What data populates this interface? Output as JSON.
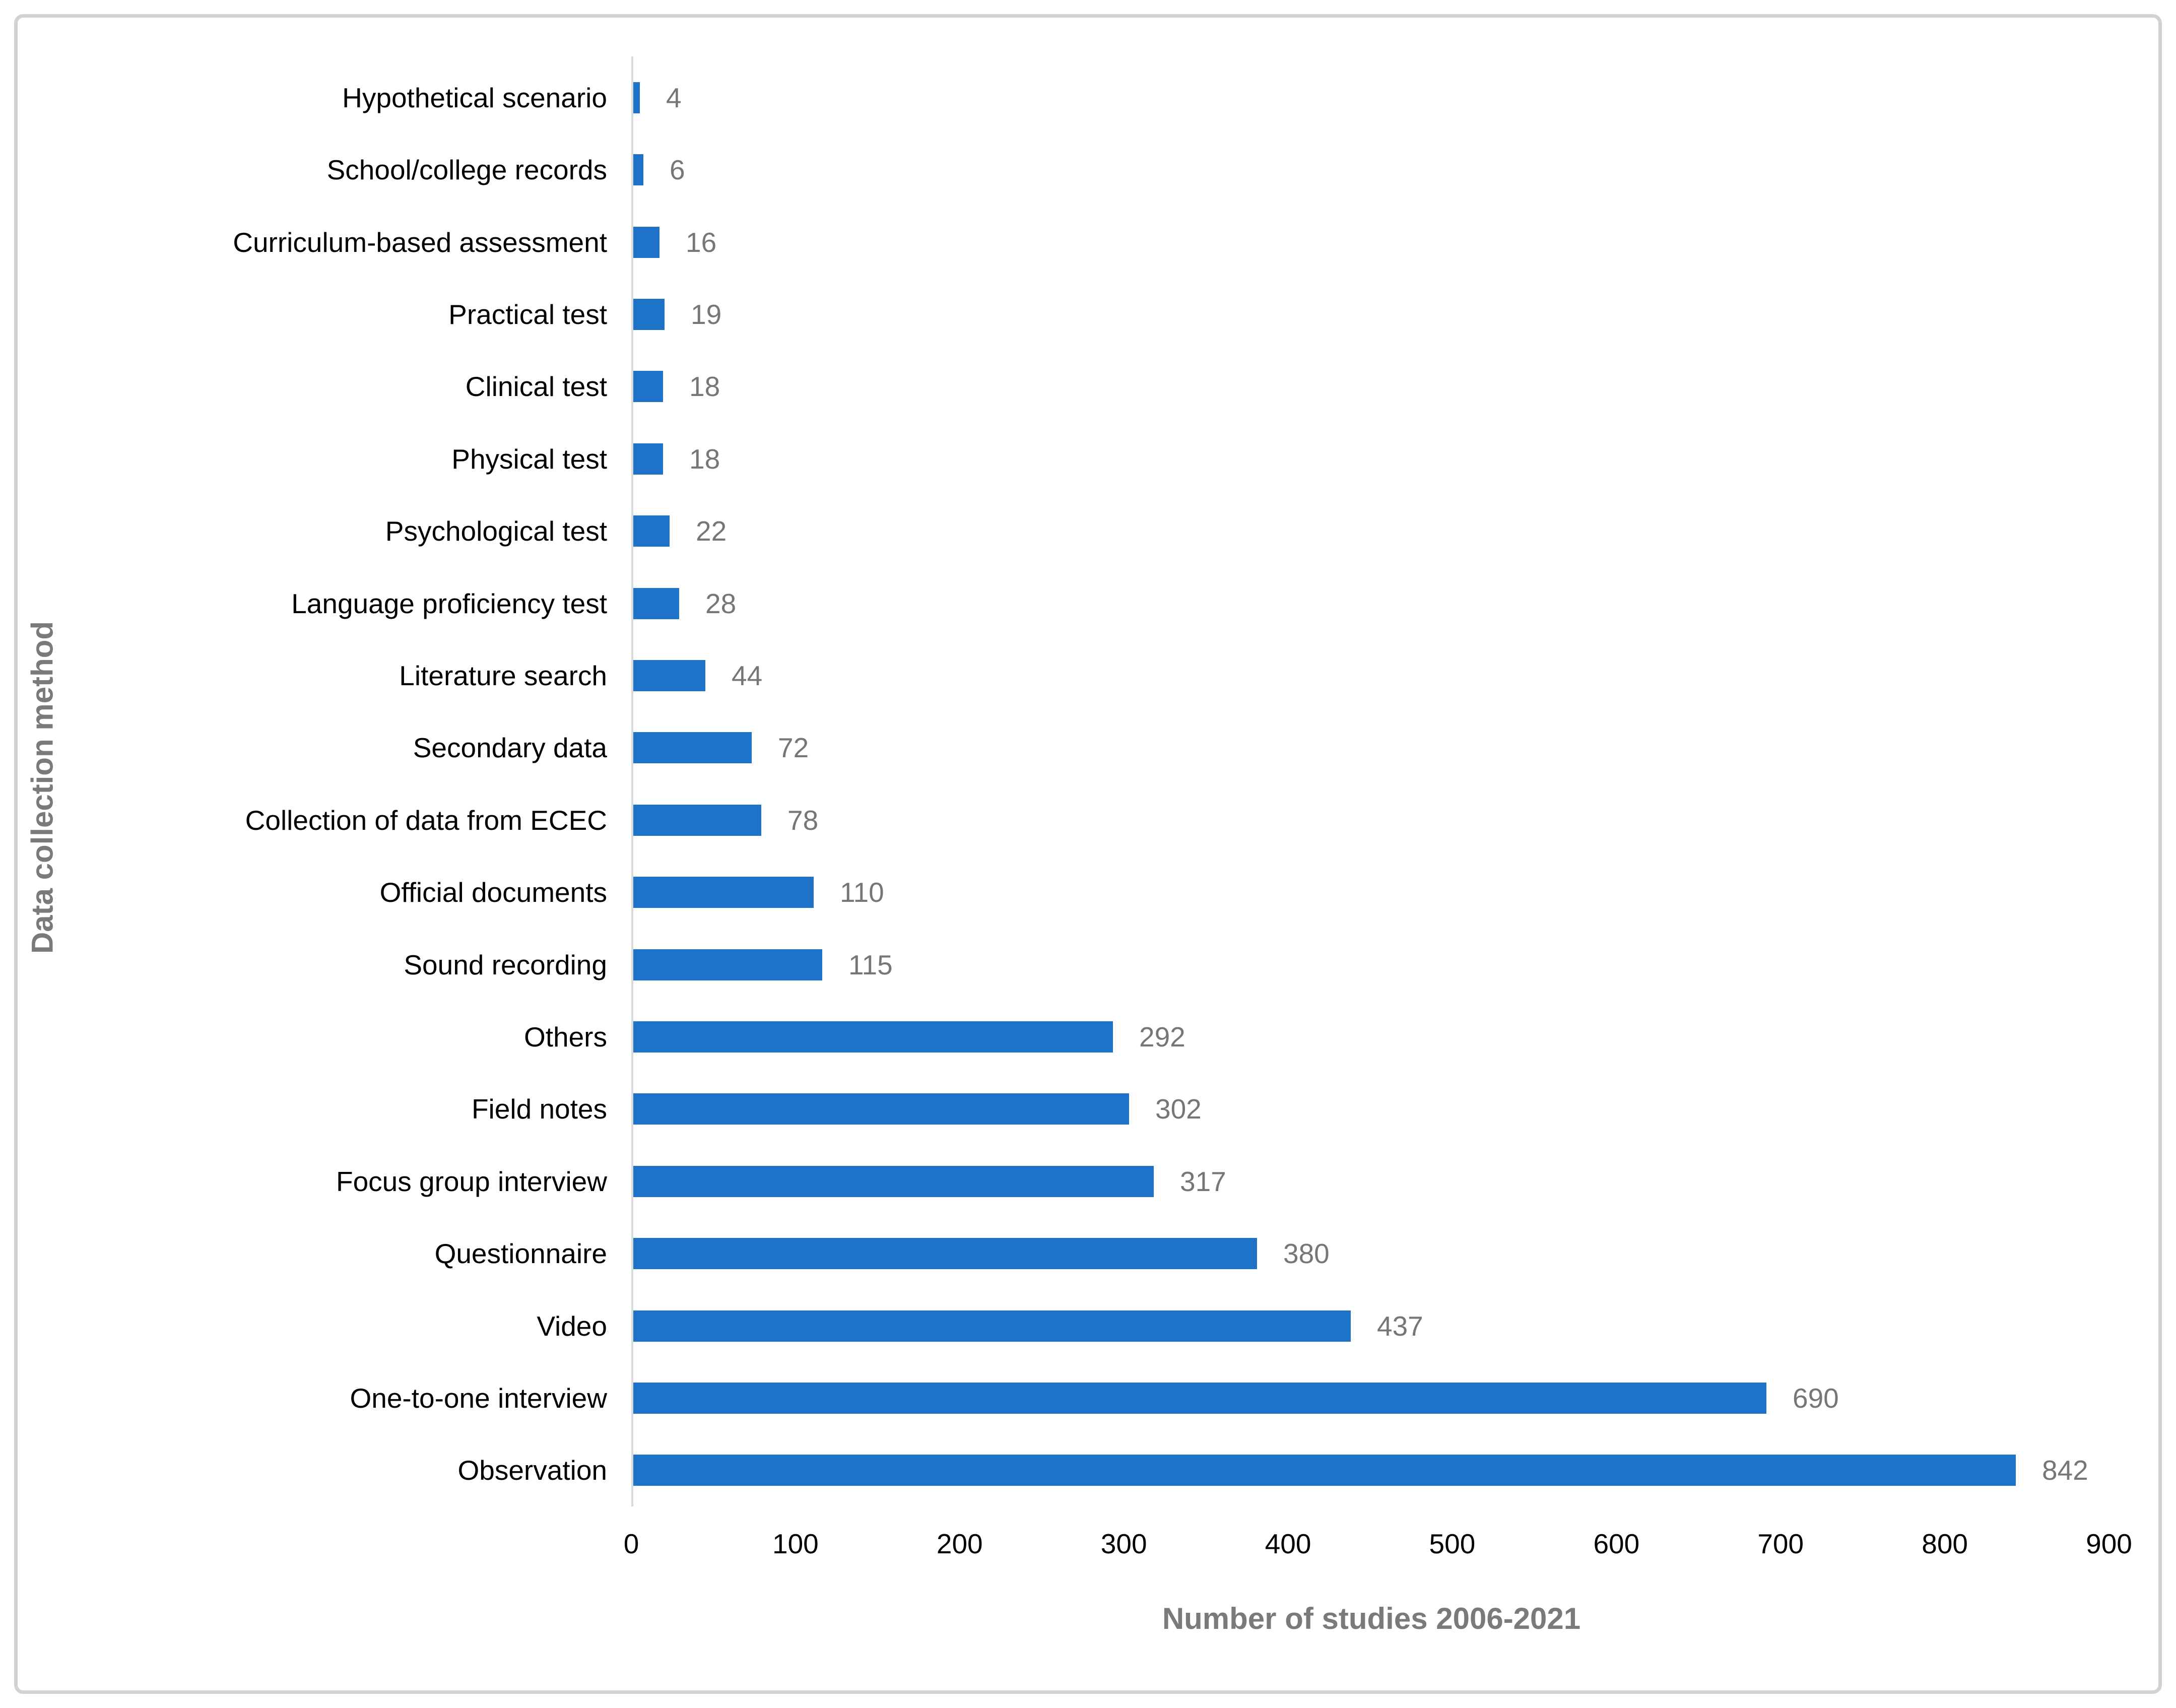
{
  "chart_data": {
    "type": "bar",
    "orientation": "horizontal",
    "title": "",
    "xlabel": "Number of studies 2006-2021",
    "ylabel": "Data collection method",
    "xlim": [
      0,
      900
    ],
    "xticks": [
      0,
      100,
      200,
      300,
      400,
      500,
      600,
      700,
      800,
      900
    ],
    "grid": false,
    "legend": "none",
    "data_labels": true,
    "bar_color": "#1e73c8",
    "value_label_color": "#767676",
    "axis_title_color": "#7a7a7a",
    "axis_line_color": "#d9d9d9",
    "categories": [
      "Hypothetical scenario",
      "School/college records",
      "Curriculum-based assessment",
      "Practical test",
      "Clinical test",
      "Physical test",
      "Psychological test",
      "Language proficiency test",
      "Literature search",
      "Secondary data",
      "Collection of data from ECEC",
      "Official documents",
      "Sound recording",
      "Others",
      "Field notes",
      "Focus group interview",
      "Questionnaire",
      "Video",
      "One-to-one interview",
      "Observation"
    ],
    "values": [
      4,
      6,
      16,
      19,
      18,
      18,
      22,
      28,
      44,
      72,
      78,
      110,
      115,
      292,
      302,
      317,
      380,
      437,
      690,
      842
    ]
  }
}
